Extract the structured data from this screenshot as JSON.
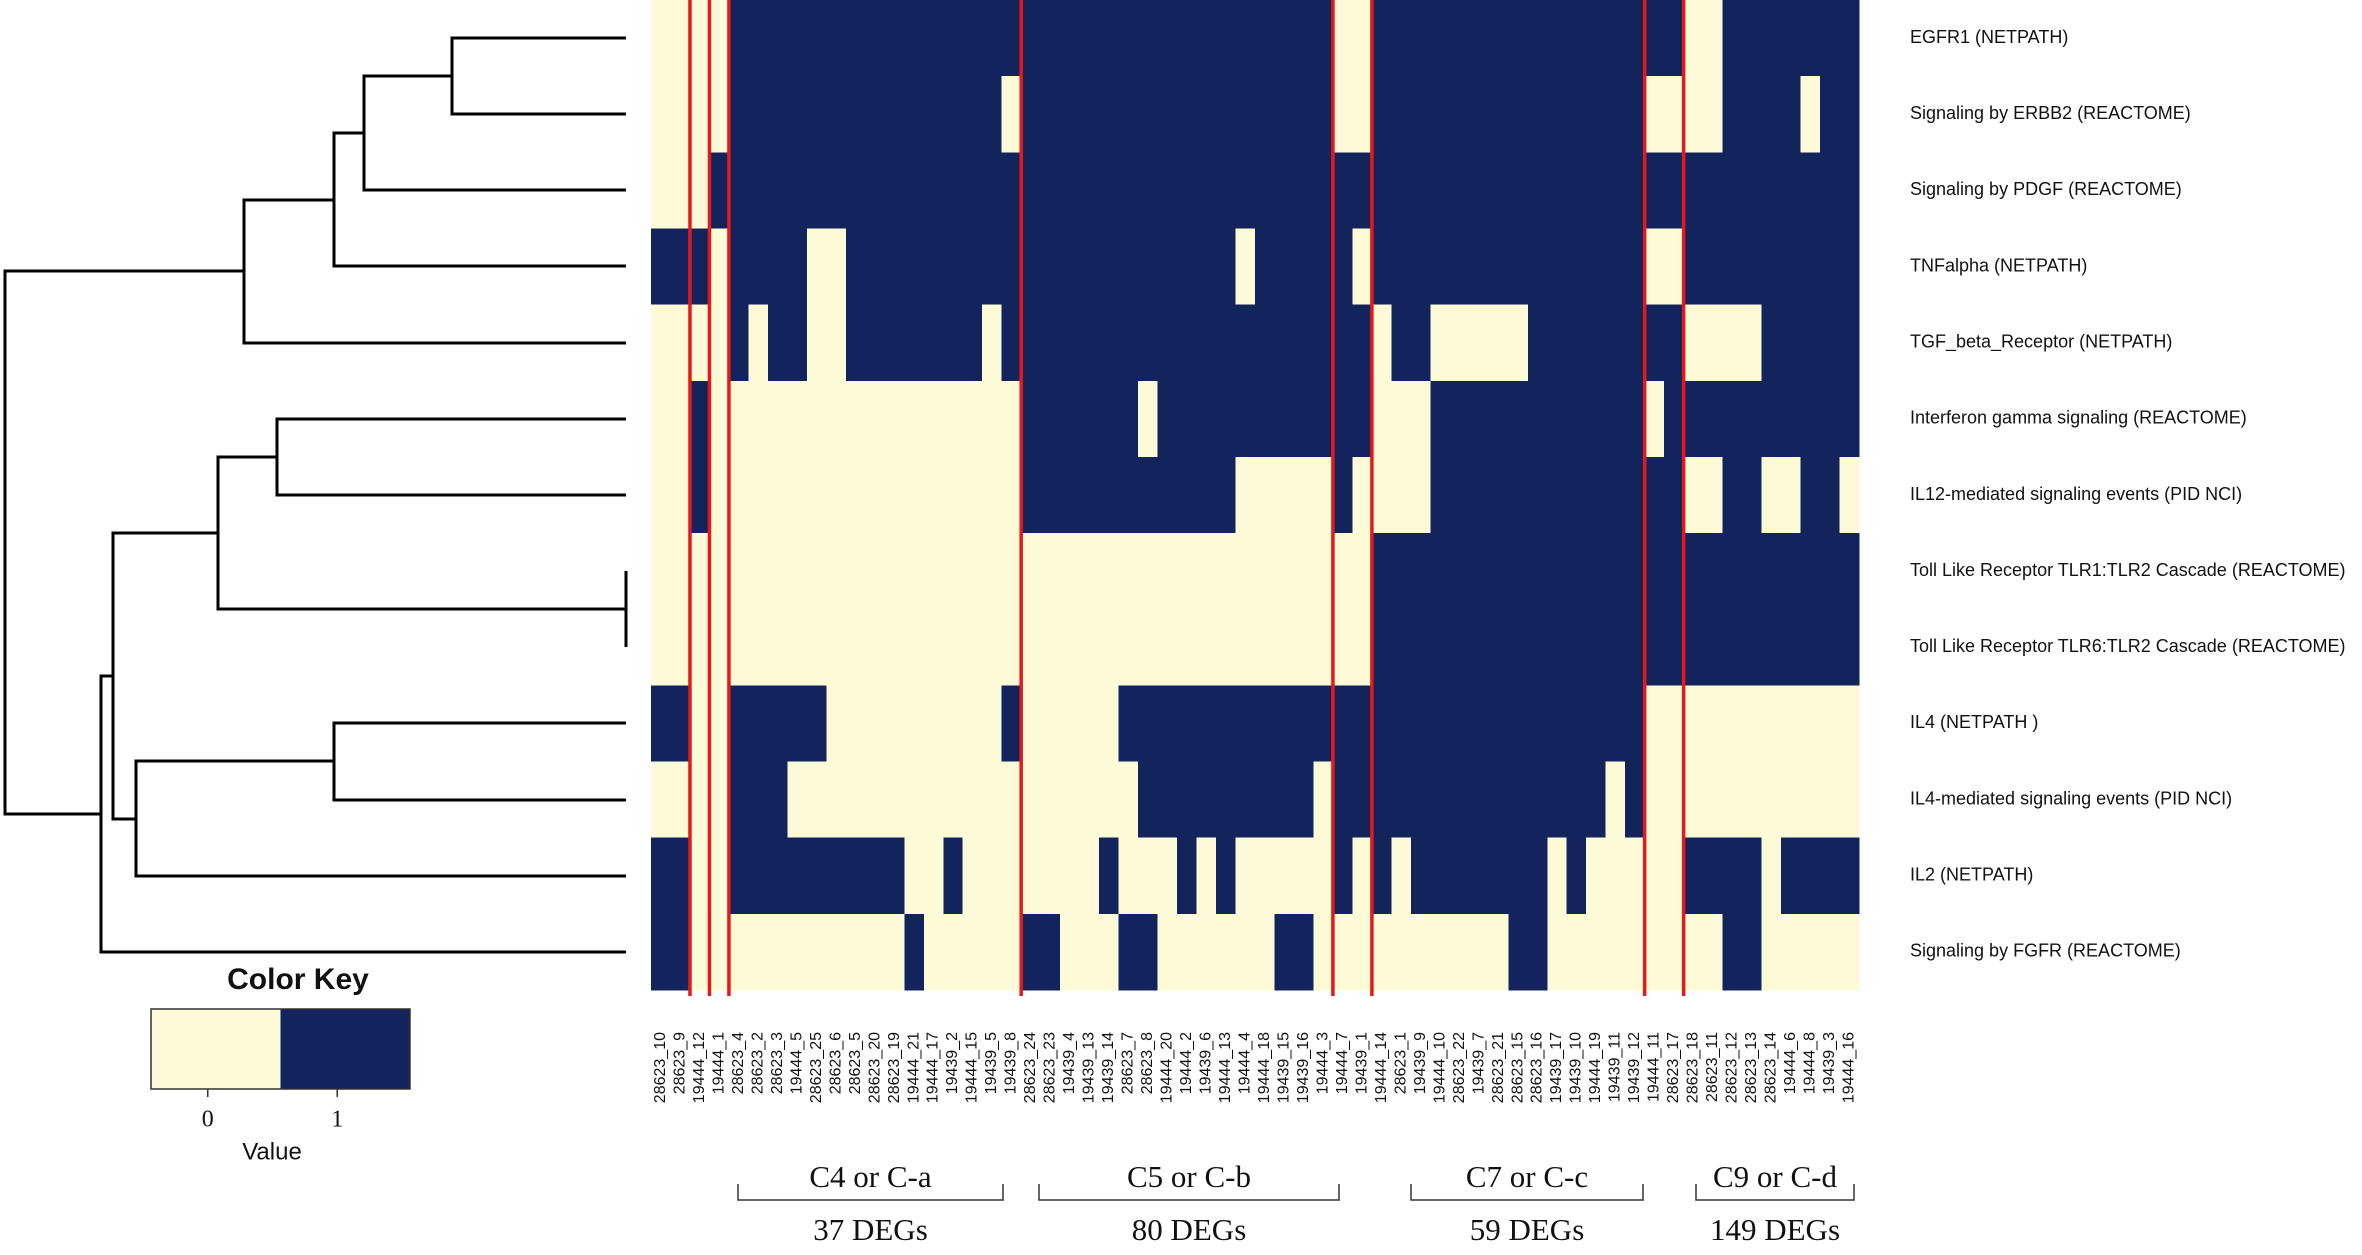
{
  "chart_data": {
    "type": "heatmap",
    "rows": [
      "EGFR1 (NETPATH)",
      "Signaling by ERBB2 (REACTOME)",
      "Signaling by PDGF (REACTOME)",
      "TNFalpha (NETPATH)",
      "TGF_beta_Receptor (NETPATH)",
      "Interferon gamma signaling (REACTOME)",
      "IL12-mediated signaling  events (PID NCI)",
      "Toll Like Receptor TLR1:TLR2 Cascade (REACTOME)",
      "Toll Like Receptor TLR6:TLR2 Cascade (REACTOME)",
      "IL4 (NETPATH )",
      "IL4-mediated signaling events (PID NCI)",
      "IL2 (NETPATH)",
      "Signaling by FGFR (REACTOME)"
    ],
    "columns": [
      "28623_10",
      "28623_9",
      "19444_12",
      "19444_1",
      "28623_4",
      "28623_2",
      "28623_3",
      "19444_5",
      "28623_25",
      "28623_6",
      "28623_5",
      "28623_20",
      "28623_19",
      "19444_21",
      "19444_17",
      "19439_2",
      "19444_15",
      "19439_5",
      "19439_8",
      "28623_24",
      "28623_23",
      "19439_4",
      "19439_13",
      "19439_14",
      "28623_7",
      "28623_8",
      "19444_20",
      "19444_2",
      "19439_6",
      "19444_13",
      "19444_4",
      "19444_18",
      "19439_15",
      "19439_16",
      "19444_3",
      "19444_7",
      "19439_1",
      "19444_14",
      "28623_1",
      "19439_9",
      "19444_10",
      "28623_22",
      "19439_7",
      "28623_21",
      "28623_15",
      "28623_16",
      "19439_17",
      "19439_10",
      "19444_19",
      "19439_11",
      "19439_12",
      "19444_11",
      "28623_17",
      "28623_18",
      "28623_11",
      "28623_12",
      "28623_13",
      "28623_14",
      "19444_6",
      "19444_8",
      "19439_3",
      "19444_16"
    ],
    "values": [
      [
        0,
        0,
        0,
        0,
        1,
        1,
        1,
        1,
        1,
        1,
        1,
        1,
        1,
        1,
        1,
        1,
        1,
        1,
        1,
        1,
        1,
        1,
        1,
        1,
        1,
        1,
        1,
        1,
        1,
        1,
        1,
        1,
        1,
        1,
        1,
        0,
        0,
        1,
        1,
        1,
        1,
        1,
        1,
        1,
        1,
        1,
        1,
        1,
        1,
        1,
        1,
        1,
        1,
        0,
        0,
        1,
        1,
        1,
        1,
        1,
        1,
        1
      ],
      [
        0,
        0,
        0,
        0,
        1,
        1,
        1,
        1,
        1,
        1,
        1,
        1,
        1,
        1,
        1,
        1,
        1,
        1,
        0,
        1,
        1,
        1,
        1,
        1,
        1,
        1,
        1,
        1,
        1,
        1,
        1,
        1,
        1,
        1,
        1,
        0,
        0,
        1,
        1,
        1,
        1,
        1,
        1,
        1,
        1,
        1,
        1,
        1,
        1,
        1,
        1,
        0,
        0,
        0,
        0,
        1,
        1,
        1,
        1,
        0,
        1,
        1
      ],
      [
        0,
        0,
        0,
        1,
        1,
        1,
        1,
        1,
        1,
        1,
        1,
        1,
        1,
        1,
        1,
        1,
        1,
        1,
        1,
        1,
        1,
        1,
        1,
        1,
        1,
        1,
        1,
        1,
        1,
        1,
        1,
        1,
        1,
        1,
        1,
        1,
        1,
        1,
        1,
        1,
        1,
        1,
        1,
        1,
        1,
        1,
        1,
        1,
        1,
        1,
        1,
        1,
        1,
        1,
        1,
        1,
        1,
        1,
        1,
        1,
        1,
        1
      ],
      [
        1,
        1,
        1,
        0,
        1,
        1,
        1,
        1,
        0,
        0,
        1,
        1,
        1,
        1,
        1,
        1,
        1,
        1,
        1,
        1,
        1,
        1,
        1,
        1,
        1,
        1,
        1,
        1,
        1,
        1,
        0,
        1,
        1,
        1,
        1,
        1,
        0,
        1,
        1,
        1,
        1,
        1,
        1,
        1,
        1,
        1,
        1,
        1,
        1,
        1,
        1,
        0,
        0,
        1,
        1,
        1,
        1,
        1,
        1,
        1,
        1,
        1
      ],
      [
        0,
        0,
        0,
        0,
        1,
        0,
        1,
        1,
        0,
        0,
        1,
        1,
        1,
        1,
        1,
        1,
        1,
        0,
        1,
        1,
        1,
        1,
        1,
        1,
        1,
        1,
        1,
        1,
        1,
        1,
        1,
        1,
        1,
        1,
        1,
        1,
        1,
        0,
        1,
        1,
        0,
        0,
        0,
        0,
        0,
        1,
        1,
        1,
        1,
        1,
        1,
        1,
        1,
        0,
        0,
        0,
        0,
        1,
        1,
        1,
        1,
        1
      ],
      [
        0,
        0,
        1,
        0,
        0,
        0,
        0,
        0,
        0,
        0,
        0,
        0,
        0,
        0,
        0,
        0,
        0,
        0,
        0,
        1,
        1,
        1,
        1,
        1,
        1,
        0,
        1,
        1,
        1,
        1,
        1,
        1,
        1,
        1,
        1,
        1,
        1,
        0,
        0,
        0,
        1,
        1,
        1,
        1,
        1,
        1,
        1,
        1,
        1,
        1,
        1,
        0,
        1,
        1,
        1,
        1,
        1,
        1,
        1,
        1,
        1,
        1
      ],
      [
        0,
        0,
        1,
        0,
        0,
        0,
        0,
        0,
        0,
        0,
        0,
        0,
        0,
        0,
        0,
        0,
        0,
        0,
        0,
        1,
        1,
        1,
        1,
        1,
        1,
        1,
        1,
        1,
        1,
        1,
        0,
        0,
        0,
        0,
        0,
        1,
        0,
        0,
        0,
        0,
        1,
        1,
        1,
        1,
        1,
        1,
        1,
        1,
        1,
        1,
        1,
        1,
        1,
        0,
        0,
        1,
        1,
        0,
        0,
        1,
        1,
        0
      ],
      [
        0,
        0,
        0,
        0,
        0,
        0,
        0,
        0,
        0,
        0,
        0,
        0,
        0,
        0,
        0,
        0,
        0,
        0,
        0,
        0,
        0,
        0,
        0,
        0,
        0,
        0,
        0,
        0,
        0,
        0,
        0,
        0,
        0,
        0,
        0,
        0,
        0,
        1,
        1,
        1,
        1,
        1,
        1,
        1,
        1,
        1,
        1,
        1,
        1,
        1,
        1,
        1,
        1,
        1,
        1,
        1,
        1,
        1,
        1,
        1,
        1,
        1
      ],
      [
        0,
        0,
        0,
        0,
        0,
        0,
        0,
        0,
        0,
        0,
        0,
        0,
        0,
        0,
        0,
        0,
        0,
        0,
        0,
        0,
        0,
        0,
        0,
        0,
        0,
        0,
        0,
        0,
        0,
        0,
        0,
        0,
        0,
        0,
        0,
        0,
        0,
        1,
        1,
        1,
        1,
        1,
        1,
        1,
        1,
        1,
        1,
        1,
        1,
        1,
        1,
        1,
        1,
        1,
        1,
        1,
        1,
        1,
        1,
        1,
        1,
        1
      ],
      [
        1,
        1,
        0,
        0,
        1,
        1,
        1,
        1,
        1,
        0,
        0,
        0,
        0,
        0,
        0,
        0,
        0,
        0,
        1,
        0,
        0,
        0,
        0,
        0,
        1,
        1,
        1,
        1,
        1,
        1,
        1,
        1,
        1,
        1,
        1,
        1,
        1,
        1,
        1,
        1,
        1,
        1,
        1,
        1,
        1,
        1,
        1,
        1,
        1,
        1,
        1,
        0,
        0,
        0,
        0,
        0,
        0,
        0,
        0,
        0,
        0,
        0
      ],
      [
        0,
        0,
        0,
        0,
        1,
        1,
        1,
        0,
        0,
        0,
        0,
        0,
        0,
        0,
        0,
        0,
        0,
        0,
        0,
        0,
        0,
        0,
        0,
        0,
        0,
        1,
        1,
        1,
        1,
        1,
        1,
        1,
        1,
        1,
        0,
        1,
        1,
        1,
        1,
        1,
        1,
        1,
        1,
        1,
        1,
        1,
        1,
        1,
        1,
        0,
        1,
        0,
        0,
        0,
        0,
        0,
        0,
        0,
        0,
        0,
        0,
        0
      ],
      [
        1,
        1,
        0,
        0,
        1,
        1,
        1,
        1,
        1,
        1,
        1,
        1,
        1,
        0,
        0,
        1,
        0,
        0,
        0,
        0,
        0,
        0,
        0,
        1,
        0,
        0,
        0,
        1,
        0,
        1,
        0,
        0,
        0,
        0,
        0,
        1,
        0,
        1,
        0,
        1,
        1,
        1,
        1,
        1,
        1,
        1,
        0,
        1,
        0,
        0,
        0,
        0,
        0,
        1,
        1,
        1,
        1,
        0,
        1,
        1,
        1,
        1
      ],
      [
        1,
        1,
        0,
        0,
        0,
        0,
        0,
        0,
        0,
        0,
        0,
        0,
        0,
        1,
        0,
        0,
        0,
        0,
        0,
        1,
        1,
        0,
        0,
        0,
        1,
        1,
        0,
        0,
        0,
        0,
        0,
        0,
        1,
        1,
        0,
        0,
        0,
        0,
        0,
        0,
        0,
        0,
        0,
        0,
        1,
        1,
        0,
        0,
        0,
        0,
        0,
        0,
        0,
        0,
        0,
        1,
        1,
        0,
        0,
        0,
        0,
        0
      ]
    ],
    "colors": [
      "#fdfbd7",
      "#13235c"
    ],
    "separator_color": "#e3191b",
    "separators_after": [
      2,
      3,
      4,
      19,
      35,
      37,
      51,
      53
    ],
    "groups": [
      {
        "name": "C4 or C-a",
        "size": "37 DEGs"
      },
      {
        "name": "C5 or C-b",
        "size": "80 DEGs"
      },
      {
        "name": "C7 or C-c",
        "size": "59 DEGs"
      },
      {
        "name": "C9 or C-d",
        "size": "149 DEGs"
      }
    ],
    "legend": {
      "title": "Color Key",
      "label": "Value",
      "ticks": [
        0,
        1
      ]
    }
  }
}
